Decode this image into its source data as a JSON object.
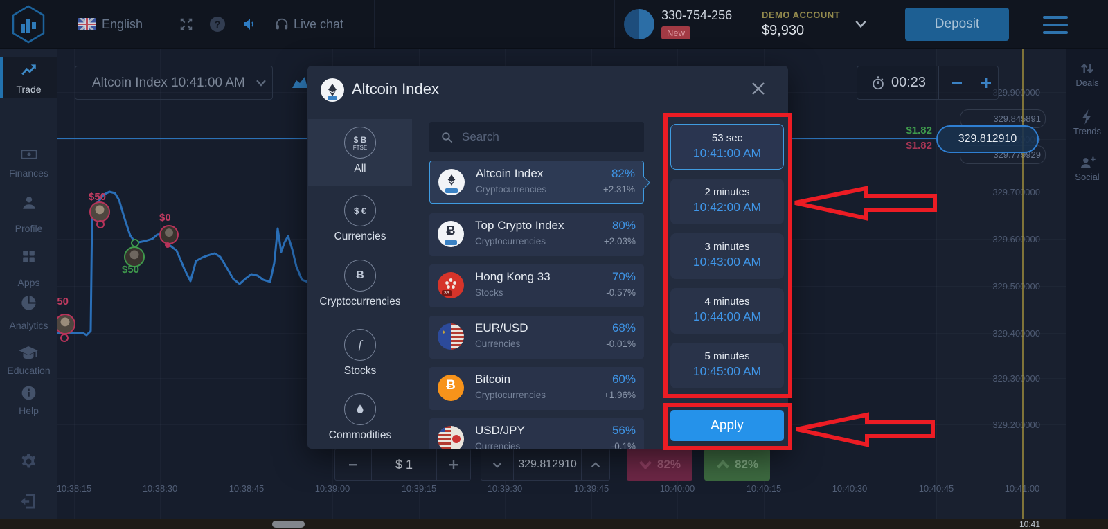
{
  "topbar": {
    "language": "English",
    "live_chat_label": "Live chat",
    "help_glyph": "?",
    "account_id": "330-754-256",
    "new_badge": "New",
    "account_type": "DEMO ACCOUNT",
    "balance": "$9,930",
    "deposit_label": "Deposit"
  },
  "sidebar": {
    "items": [
      {
        "label": "Trade",
        "icon": "trend-up-icon",
        "active": true
      },
      {
        "label": "Finances",
        "icon": "banknote-icon"
      },
      {
        "label": "Profile",
        "icon": "person-icon"
      },
      {
        "label": "Apps",
        "icon": "grid-icon"
      },
      {
        "label": "Analytics",
        "icon": "pie-chart-icon"
      },
      {
        "label": "Education",
        "icon": "graduation-cap-icon"
      },
      {
        "label": "Help",
        "icon": "info-icon"
      }
    ]
  },
  "rightbar": {
    "items": [
      {
        "label": "Deals",
        "icon": "up-down-arrows-icon"
      },
      {
        "label": "Trends",
        "icon": "lightning-icon"
      },
      {
        "label": "Social",
        "icon": "person-plus-icon"
      }
    ]
  },
  "chart": {
    "symbol_selector": "Altcoin Index 10:41:00 AM",
    "timer": "00:23",
    "current_price": "329.812910",
    "payout_up": "$1.82",
    "payout_down": "$1.82",
    "price_scale": [
      "329.900000",
      "329.845891",
      "329.800000",
      "329.779929",
      "329.700000",
      "329.600000",
      "329.500000",
      "329.400000",
      "329.300000",
      "329.200000"
    ],
    "time_axis": [
      "10:38:15",
      "10:38:30",
      "10:38:45",
      "10:39:00",
      "10:39:15",
      "10:39:30",
      "10:39:45",
      "10:40:00",
      "10:40:15",
      "10:40:30",
      "10:40:45",
      "10:41:00"
    ],
    "scrollbar_time": "10:41",
    "markers": [
      {
        "label": "$50",
        "color": "red"
      },
      {
        "label": "$50",
        "color": "green"
      },
      {
        "label": "$0",
        "color": "red"
      },
      {
        "label": "$50",
        "color": "red"
      }
    ]
  },
  "modal": {
    "title": "Altcoin Index",
    "search_placeholder": "Search",
    "tabs": [
      {
        "label": "All",
        "icon_top": "$ Ƀ",
        "icon_bottom": "FTSE"
      },
      {
        "label": "Currencies",
        "icon_top": "$ €"
      },
      {
        "label": "Cryptocurrencies",
        "icon_top": "Ƀ"
      },
      {
        "label": "Stocks",
        "icon_top": "f"
      },
      {
        "label": "Commodities",
        "icon_top": ""
      }
    ],
    "assets": [
      {
        "name": "Altcoin Index",
        "category": "Cryptocurrencies",
        "payout": "82%",
        "change": "+2.31%",
        "selected": true
      },
      {
        "name": "Top Crypto Index",
        "category": "Cryptocurrencies",
        "payout": "80%",
        "change": "+2.03%"
      },
      {
        "name": "Hong Kong 33",
        "category": "Stocks",
        "payout": "70%",
        "change": "-0.57%",
        "badge": "33"
      },
      {
        "name": "EUR/USD",
        "category": "Currencies",
        "payout": "68%",
        "change": "-0.01%"
      },
      {
        "name": "Bitcoin",
        "category": "Cryptocurrencies",
        "payout": "60%",
        "change": "+1.96%"
      },
      {
        "name": "USD/JPY",
        "category": "Currencies",
        "payout": "56%",
        "change": "-0.1%"
      }
    ],
    "expiry_options": [
      {
        "duration": "53 sec",
        "time": "10:41:00 AM",
        "selected": true
      },
      {
        "duration": "2 minutes",
        "time": "10:42:00 AM"
      },
      {
        "duration": "3 minutes",
        "time": "10:43:00 AM"
      },
      {
        "duration": "4 minutes",
        "time": "10:44:00 AM"
      },
      {
        "duration": "5 minutes",
        "time": "10:45:00 AM"
      }
    ],
    "apply_label": "Apply"
  },
  "trade_controls": {
    "amount": "$ 1",
    "strike_price": "329.812910",
    "down_payout": "82%",
    "up_payout": "82%"
  },
  "colors": {
    "accent_blue": "#3f96e8",
    "apply_blue": "#2592ea",
    "annotation_red": "#ec1c24",
    "payout_up_green": "#3f9a4c",
    "payout_down_red": "#a93655",
    "deposit_button": "#1d5f93",
    "current_price_line": "#2f7fd2",
    "yellow_timeline": "#a8923c",
    "demo_account_yellow": "#938a4d",
    "new_badge_red": "#a23a44"
  }
}
